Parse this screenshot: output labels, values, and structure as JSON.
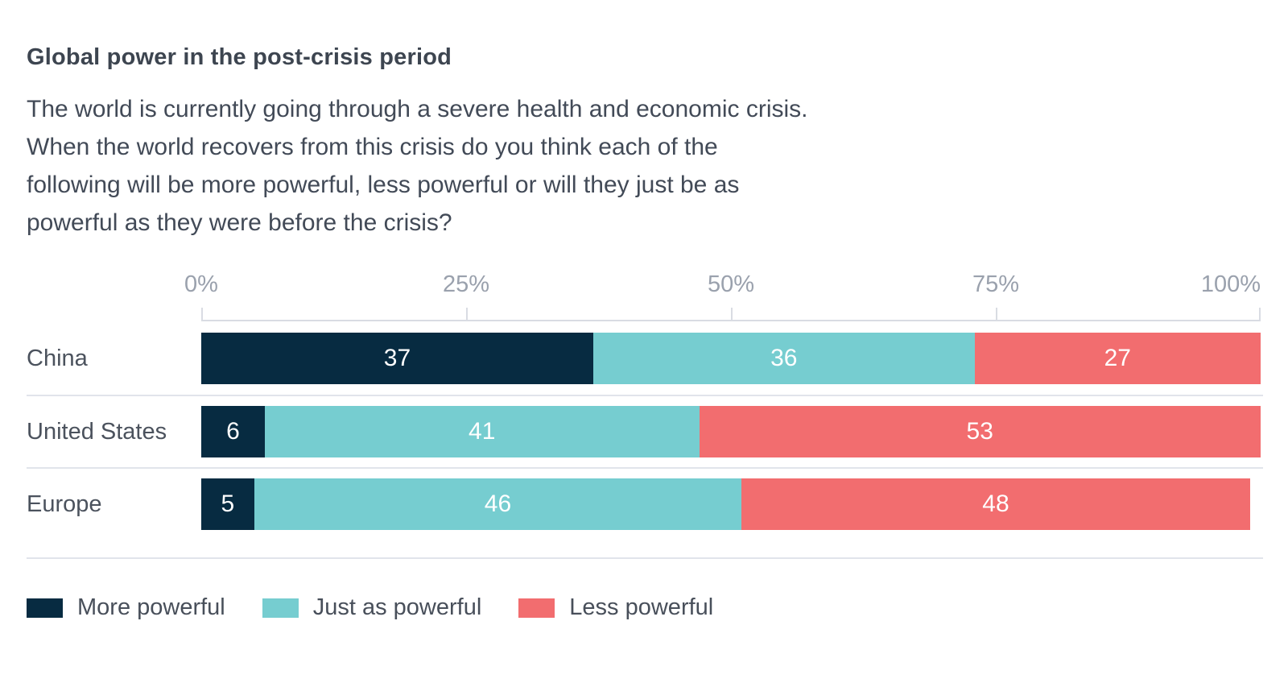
{
  "title": "Global power in the post-crisis period",
  "subtitle_lines": [
    "The world is currently going through a severe health and economic crisis.",
    "When the world recovers from this crisis do you think each of the",
    "following will be more powerful, less powerful or will they just be as",
    "powerful as they were before the crisis?"
  ],
  "colors": {
    "more_powerful": "#072b41",
    "just_as_powerful": "#76cdd0",
    "less_powerful": "#f26d6f",
    "axis_line": "#d9dce3",
    "row_divider": "#e1e4eb",
    "tick_label_text": "#9aa1ad",
    "category_label_text": "#4b525d",
    "title_text": "#3d4550",
    "subtitle_text": "#424a57",
    "bar_value_text": "#ffffff"
  },
  "chart_data": {
    "type": "bar",
    "stacked": true,
    "orientation": "horizontal",
    "title": "Global power in the post-crisis period",
    "subtitle": "The world is currently going through a severe health and economic crisis. When the world recovers from this crisis do you think each of the following will be more powerful, less powerful or will they just be as powerful as they were before the crisis?",
    "categories": [
      "China",
      "United States",
      "Europe"
    ],
    "series": [
      {
        "name": "More powerful",
        "color": "#072b41",
        "values": [
          37,
          6,
          5
        ]
      },
      {
        "name": "Just as powerful",
        "color": "#76cdd0",
        "values": [
          36,
          41,
          46
        ]
      },
      {
        "name": "Less powerful",
        "color": "#f26d6f",
        "values": [
          27,
          53,
          48
        ]
      }
    ],
    "x_axis": {
      "tick_labels": [
        "0%",
        "25%",
        "50%",
        "75%",
        "100%"
      ],
      "tick_values": [
        0,
        25,
        50,
        75,
        100
      ],
      "range": [
        0,
        100
      ],
      "unit": "%",
      "grid": false
    },
    "legend": {
      "position": "bottom",
      "items": [
        {
          "label": "More powerful",
          "color": "#072b41"
        },
        {
          "label": "Just as powerful",
          "color": "#76cdd0"
        },
        {
          "label": "Less powerful",
          "color": "#f26d6f"
        }
      ]
    }
  }
}
